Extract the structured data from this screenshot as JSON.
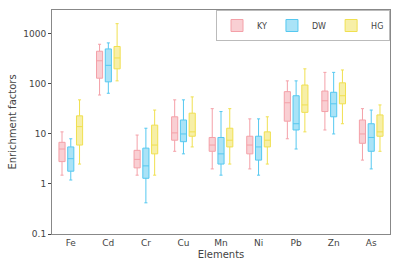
{
  "chart_data": {
    "type": "box",
    "xlabel": "Elements",
    "ylabel": "Enrichment factors",
    "categories": [
      "Fe",
      "Cd",
      "Cr",
      "Cu",
      "Mn",
      "Ni",
      "Pb",
      "Zn",
      "As"
    ],
    "series": [
      {
        "name": "KY",
        "color": "#F4A0A8",
        "values": [
          [
            1.5,
            2.8,
            5.0,
            6.8,
            11.0
          ],
          [
            60.0,
            130.0,
            290.0,
            450.0,
            620.0
          ],
          [
            1.5,
            2.1,
            3.1,
            4.7,
            9.5
          ],
          [
            4.5,
            7.5,
            10.5,
            22.0,
            48.0
          ],
          [
            2.0,
            4.5,
            6.0,
            8.5,
            32.0
          ],
          [
            2.0,
            4.0,
            6.0,
            9.0,
            20.0
          ],
          [
            8.0,
            18.0,
            42.0,
            70.0,
            115.0
          ],
          [
            12.0,
            28.0,
            46.0,
            72.0,
            170.0
          ],
          [
            3.0,
            6.5,
            10.0,
            19.0,
            32.0
          ]
        ]
      },
      {
        "name": "DW",
        "color": "#55C8F0",
        "values": [
          [
            1.2,
            1.8,
            3.2,
            5.5,
            8.0
          ],
          [
            65.0,
            110.0,
            235.0,
            500.0,
            660.0
          ],
          [
            0.42,
            1.3,
            2.3,
            5.2,
            13.0
          ],
          [
            4.0,
            7.0,
            10.0,
            19.0,
            48.0
          ],
          [
            1.5,
            2.5,
            4.0,
            8.5,
            28.0
          ],
          [
            1.5,
            3.0,
            5.5,
            9.0,
            20.0
          ],
          [
            5.0,
            12.0,
            16.0,
            58.0,
            115.0
          ],
          [
            10.0,
            22.0,
            40.0,
            68.0,
            170.0
          ],
          [
            2.0,
            4.5,
            8.5,
            16.0,
            30.0
          ]
        ]
      },
      {
        "name": "HG",
        "color": "#F0E050",
        "values": [
          [
            2.5,
            6.0,
            14.0,
            23.0,
            48.0
          ],
          [
            115.0,
            200.0,
            330.0,
            560.0,
            1600.0
          ],
          [
            1.5,
            4.0,
            6.0,
            15.0,
            30.0
          ],
          [
            5.5,
            9.0,
            11.0,
            26.0,
            55.0
          ],
          [
            2.5,
            5.5,
            7.5,
            13.0,
            32.0
          ],
          [
            2.5,
            5.5,
            7.5,
            11.0,
            22.0
          ],
          [
            11.0,
            27.0,
            38.0,
            95.0,
            200.0
          ],
          [
            16.0,
            40.0,
            58.0,
            105.0,
            190.0
          ],
          [
            4.5,
            9.0,
            11.0,
            24.0,
            38.0
          ]
        ]
      }
    ],
    "log": "y",
    "ylim": [
      0.1,
      3000
    ],
    "yticks": [
      0.1,
      1,
      10,
      100,
      1000
    ],
    "grid": false,
    "legend": "upper right"
  }
}
